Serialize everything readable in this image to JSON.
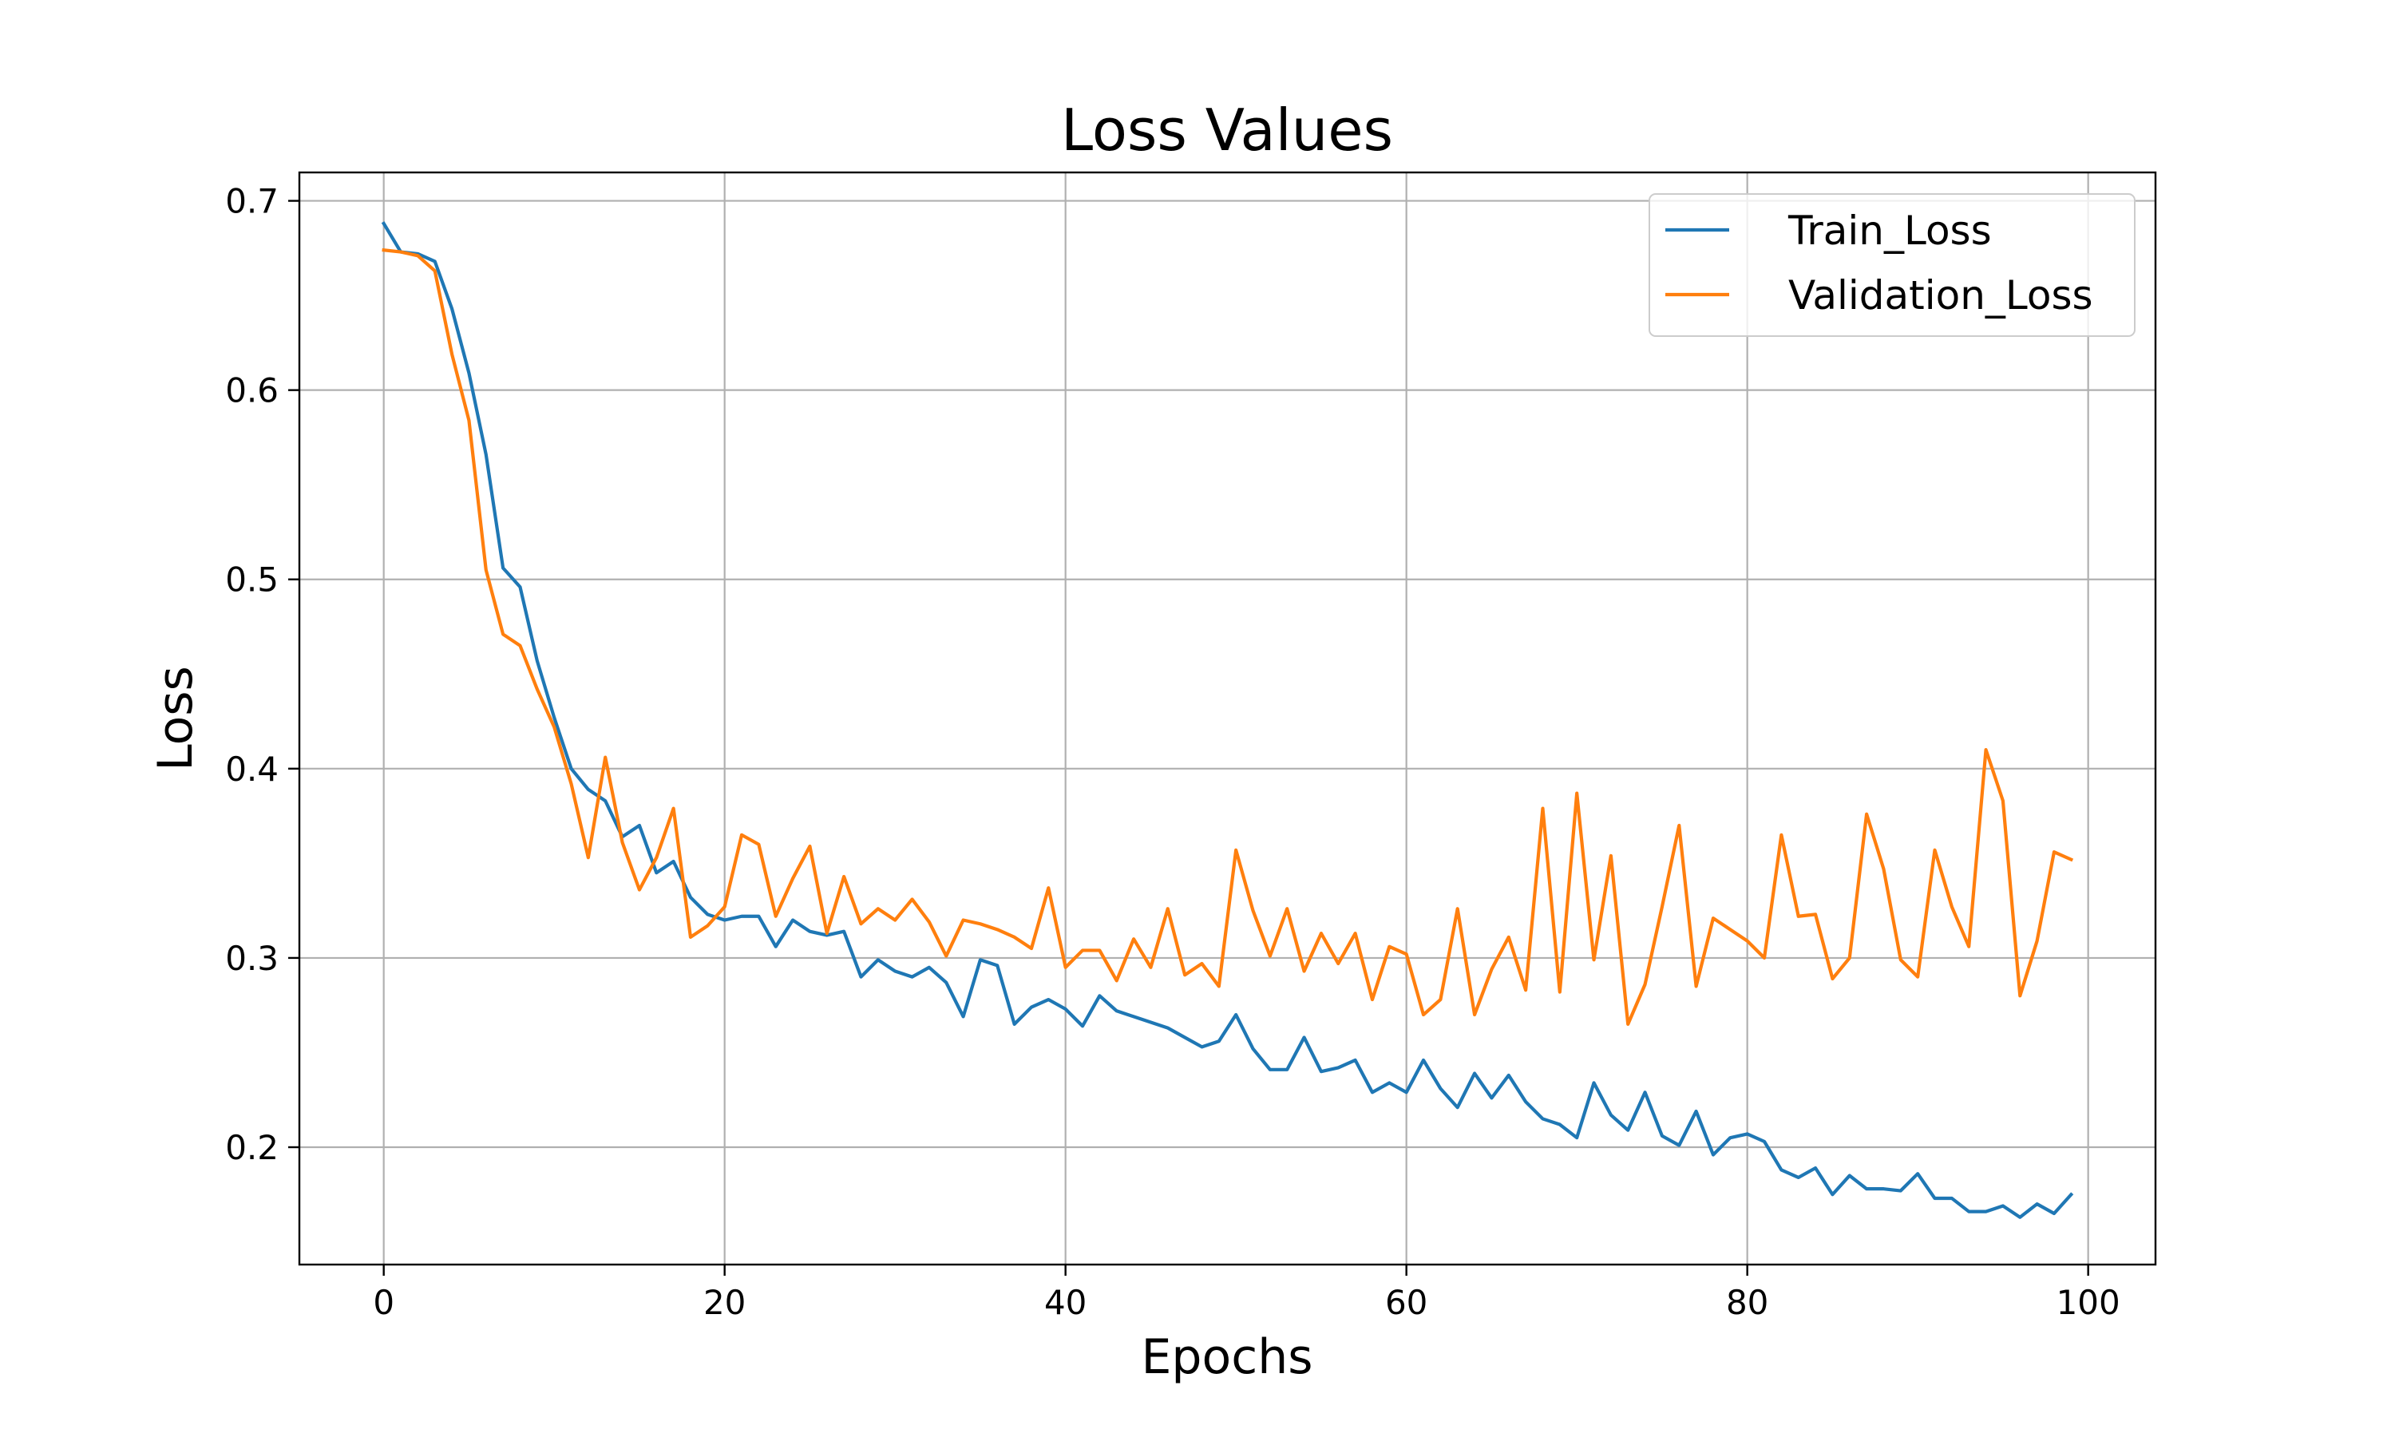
{
  "chart_data": {
    "type": "line",
    "title": "Loss Values",
    "xlabel": "Epochs",
    "ylabel": "Loss",
    "xlim": [
      -4.95,
      103.95
    ],
    "ylim": [
      0.138,
      0.715
    ],
    "xticks": [
      0,
      20,
      40,
      60,
      80,
      100
    ],
    "yticks": [
      0.2,
      0.3,
      0.4,
      0.5,
      0.6,
      0.7
    ],
    "grid": true,
    "legend": "top-right",
    "series": [
      {
        "name": "Train_Loss",
        "color": "#1f77b4",
        "values": [
          0.688,
          0.673,
          0.672,
          0.668,
          0.643,
          0.609,
          0.566,
          0.506,
          0.496,
          0.457,
          0.427,
          0.4,
          0.389,
          0.383,
          0.364,
          0.37,
          0.345,
          0.351,
          0.332,
          0.323,
          0.32,
          0.322,
          0.322,
          0.306,
          0.32,
          0.314,
          0.312,
          0.314,
          0.29,
          0.299,
          0.293,
          0.29,
          0.295,
          0.287,
          0.269,
          0.299,
          0.296,
          0.265,
          0.274,
          0.278,
          0.273,
          0.264,
          0.28,
          0.272,
          0.269,
          0.266,
          0.263,
          0.258,
          0.253,
          0.256,
          0.27,
          0.252,
          0.241,
          0.241,
          0.258,
          0.24,
          0.242,
          0.246,
          0.229,
          0.234,
          0.229,
          0.246,
          0.231,
          0.221,
          0.239,
          0.226,
          0.238,
          0.224,
          0.215,
          0.212,
          0.205,
          0.234,
          0.217,
          0.209,
          0.229,
          0.206,
          0.201,
          0.219,
          0.196,
          0.205,
          0.207,
          0.203,
          0.188,
          0.184,
          0.189,
          0.175,
          0.185,
          0.178,
          0.178,
          0.177,
          0.186,
          0.173,
          0.173,
          0.166,
          0.166,
          0.169,
          0.163,
          0.17,
          0.165,
          0.175
        ]
      },
      {
        "name": "Validation_Loss",
        "color": "#ff7f0e",
        "values": [
          0.674,
          0.673,
          0.671,
          0.663,
          0.619,
          0.584,
          0.505,
          0.471,
          0.465,
          0.442,
          0.422,
          0.392,
          0.353,
          0.406,
          0.361,
          0.336,
          0.353,
          0.379,
          0.311,
          0.317,
          0.327,
          0.365,
          0.36,
          0.322,
          0.342,
          0.359,
          0.313,
          0.343,
          0.318,
          0.326,
          0.32,
          0.331,
          0.319,
          0.301,
          0.32,
          0.318,
          0.315,
          0.311,
          0.305,
          0.337,
          0.295,
          0.304,
          0.304,
          0.288,
          0.31,
          0.295,
          0.326,
          0.291,
          0.297,
          0.285,
          0.357,
          0.325,
          0.301,
          0.326,
          0.293,
          0.313,
          0.297,
          0.313,
          0.278,
          0.306,
          0.302,
          0.27,
          0.278,
          0.326,
          0.27,
          0.294,
          0.311,
          0.283,
          0.379,
          0.282,
          0.387,
          0.299,
          0.354,
          0.265,
          0.286,
          0.327,
          0.37,
          0.285,
          0.321,
          0.315,
          0.309,
          0.3,
          0.365,
          0.322,
          0.323,
          0.289,
          0.3,
          0.376,
          0.347,
          0.299,
          0.29,
          0.357,
          0.327,
          0.306,
          0.41,
          0.383,
          0.28,
          0.309,
          0.356,
          0.352
        ]
      }
    ]
  }
}
